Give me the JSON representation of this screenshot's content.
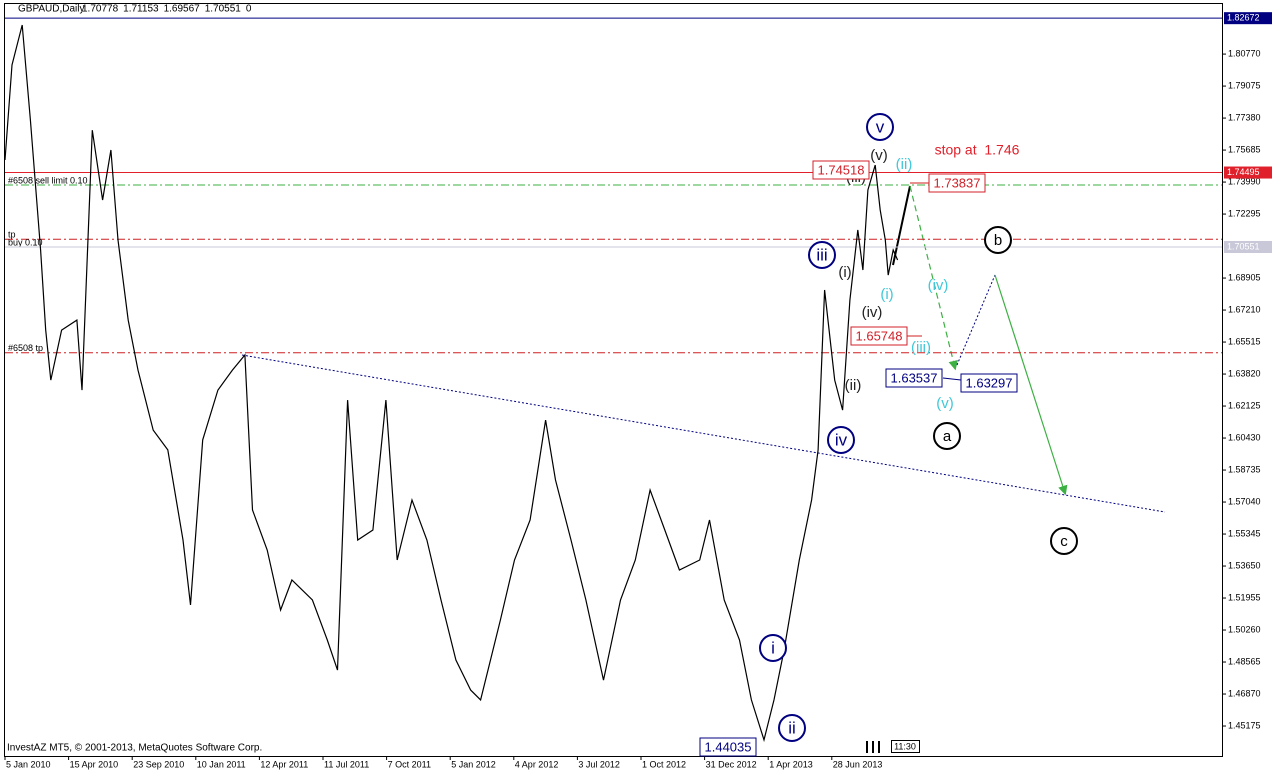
{
  "chart_data": {
    "type": "line",
    "symbol": "GBPAUD,Daily",
    "ohlc": [
      1.70778,
      1.71153,
      1.69567,
      1.70551,
      0
    ],
    "footer": "InvestAZ MT5, © 2001-2013, MetaQuotes Software Corp.",
    "clock": "11:30",
    "ylim": [
      1.4364,
      1.8284
    ],
    "yticks": [
      {
        "value": 1.8077,
        "label": "1.80770"
      },
      1.79075,
      {
        "value": 1.7738,
        "label": "1.77380"
      },
      1.75685,
      {
        "value": 1.7399,
        "label": "1.73990"
      },
      1.72295,
      1.68905,
      {
        "value": 1.6721,
        "label": "1.67210"
      },
      1.65515,
      {
        "value": 1.6382,
        "label": "1.63820"
      },
      1.62125,
      {
        "value": 1.6043,
        "label": "1.60430"
      },
      1.58735,
      {
        "value": 1.5704,
        "label": "1.57040"
      },
      1.55345,
      {
        "value": 1.5365,
        "label": "1.53650"
      },
      1.51955,
      {
        "value": 1.5026,
        "label": "1.50260"
      },
      1.48565,
      {
        "value": 1.4687,
        "label": "1.46870"
      },
      1.45175
    ],
    "xticks": [
      "5 Jan 2010",
      "15 Apr 2010",
      "23 Sep 2010",
      "10 Jan 2011",
      "12 Apr 2011",
      "11 Jul 2011",
      "7 Oct 2011",
      "5 Jan 2012",
      "4 Apr 2012",
      "3 Jul 2012",
      "1 Oct 2012",
      "31 Dec 2012",
      "1 Apr 2013",
      "28 Jun 2013"
    ],
    "series": [
      {
        "color": "#000000",
        "x": [
          "5 Jan 2010",
          "16 Jan 2010",
          "1 Feb 2010",
          "14 Feb 2010",
          "2 Mar 2010",
          "10 Mar 2010",
          "18 Mar 2010",
          "4 Apr 2010",
          "6 May 2010",
          "19 May 2010",
          "14 Jun 2010",
          "10 Jul 2010",
          "31 Jul 2010",
          "18 Aug 2010",
          "13 Sep 2010",
          "3 Oct 2010",
          "29 Oct 2010",
          "23 Nov 2010",
          "19 Dec 2010",
          "1 Jan 2011",
          "20 Jan 2011",
          "11 Feb 2011",
          "4 Mar 2011",
          "22 Mar 2011",
          "2 Apr 2011",
          "23 Apr 2011",
          "12 May 2011",
          "28 May 2011",
          "26 Jun 2011",
          "17 Jul 2011",
          "31 Jul 2011",
          "14 Aug 2011",
          "28 Aug 2011",
          "18 Sep 2011",
          "6 Oct 2011",
          "22 Oct 2011",
          "12 Nov 2011",
          "3 Dec 2011",
          "23 Dec 2011",
          "13 Jan 2012",
          "3 Feb 2012",
          "17 Feb 2012",
          "16 Mar 2012",
          "5 Apr 2012",
          "27 Apr 2012",
          "19 May 2012",
          "2 Jun 2012",
          "24 Jun 2012",
          "15 Jul 2012",
          "9 Aug 2012",
          "2 Sep 2012",
          "23 Sep 2012",
          "14 Oct 2012",
          "4 Nov 2012",
          "25 Nov 2012",
          "24 Dec 2012",
          "7 Jan 2013",
          "28 Jan 2013",
          "19 Feb 2013",
          "8 Mar 2013",
          "26 Mar 2013",
          "9 Apr 2013",
          "23 Apr 2013",
          "14 May 2013",
          "31 May 2013",
          "9 Jun 2013",
          "18 Jun 2013",
          "2 Jul 2013",
          "13 Jul 2013",
          "23 Jul 2013",
          "3 Aug 2013",
          "10 Aug 2013",
          "17 Aug 2013",
          "27 Aug 2013",
          "3 Sep 2013",
          "10 Sep 2013",
          "14 Sep 2013",
          "21 Sep 2013",
          "27 Sep 2013"
        ],
        "values": [
          1.7516,
          1.8019,
          1.8231,
          1.7727,
          1.7039,
          1.6615,
          1.635,
          1.6615,
          1.6668,
          1.6297,
          1.7674,
          1.7304,
          1.7569,
          1.7092,
          1.6668,
          1.6403,
          1.6085,
          1.598,
          1.5503,
          1.5159,
          1.6033,
          1.6297,
          1.6403,
          1.6483,
          1.5662,
          1.545,
          1.5132,
          1.5291,
          1.5185,
          1.4973,
          1.4814,
          1.6244,
          1.5503,
          1.5556,
          1.6244,
          1.5397,
          1.5715,
          1.5503,
          1.5185,
          1.4867,
          1.4708,
          1.4656,
          1.5079,
          1.5397,
          1.5609,
          1.6138,
          1.5821,
          1.5503,
          1.5185,
          1.4761,
          1.5185,
          1.5397,
          1.5768,
          1.5556,
          1.5344,
          1.5397,
          1.5609,
          1.5185,
          1.4973,
          1.4656,
          1.4444,
          1.4656,
          1.492,
          1.5397,
          1.5715,
          1.598,
          1.6827,
          1.635,
          1.6191,
          1.6774,
          1.7145,
          1.6933,
          1.7357,
          1.7489,
          1.7251,
          1.7092,
          1.6906,
          1.7039,
          1.6986
        ]
      }
    ],
    "levels": [
      {
        "value": 1.82672,
        "color": "#000080",
        "dash": "solid",
        "tag": true
      },
      {
        "value": 1.74495,
        "color": "#e0202a",
        "dash": "solid",
        "tag": true
      },
      {
        "value": 1.73837,
        "color": "#3cb043",
        "dash": "dash-dot",
        "texts": [
          "#6508 sell limit 0.10"
        ]
      },
      {
        "value": 1.7096,
        "color": "#d02020",
        "dash": "dash-dot",
        "texts": [
          "tp",
          "buy 0.10"
        ]
      },
      {
        "value": 1.70551,
        "color": "#c8c8d8",
        "dash": "solid",
        "tag": true
      },
      {
        "value": 1.6495,
        "color": "#d02020",
        "dash": "dash-dot",
        "texts": [
          "#6508 tp"
        ]
      }
    ],
    "wave_labels": [
      "v",
      "(v)",
      "(ii)",
      "(iii)",
      "iii",
      "(i)",
      "(i)",
      "(iv)",
      "(iv)",
      "(iii)",
      "(ii)",
      "(v)",
      "iv",
      "i",
      "ii",
      "a",
      "b",
      "c"
    ],
    "stop_note": "stop at  1.746",
    "price_boxes": [
      1.74518,
      1.73837,
      1.65748,
      1.63537,
      1.63297,
      1.44035
    ]
  }
}
